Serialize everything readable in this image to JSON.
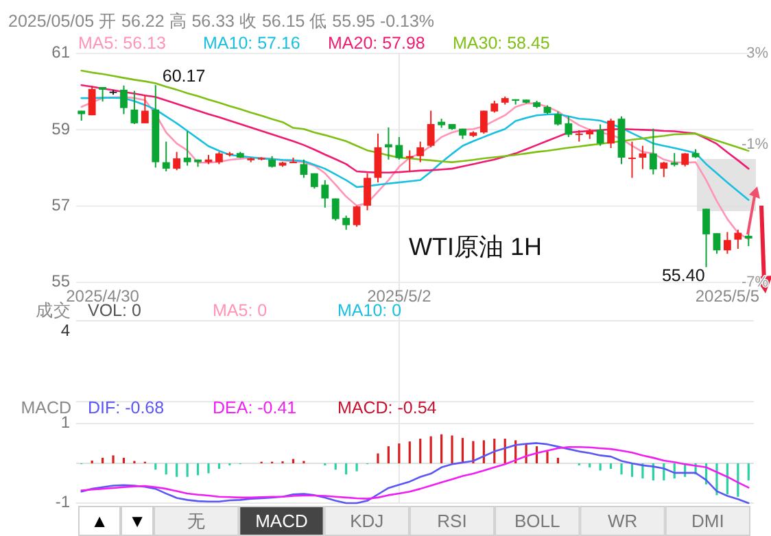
{
  "chart_data": [
    {
      "type": "candlestick",
      "title": "2025/05/05 开 56.22 高 56.33 收 56.15 低 55.95 -0.13%",
      "categories": [
        null,
        null,
        "2025/4/30",
        null,
        null,
        null,
        null,
        null,
        null,
        null,
        null,
        null,
        null,
        null,
        null,
        null,
        null,
        null,
        null,
        null,
        null,
        null,
        null,
        null,
        null,
        null,
        null,
        null,
        null,
        null,
        "2025/5/2",
        null,
        null,
        null,
        null,
        null,
        null,
        null,
        null,
        null,
        null,
        null,
        null,
        null,
        null,
        null,
        null,
        null,
        null,
        null,
        null,
        null,
        null,
        null,
        null,
        null,
        null,
        null,
        null,
        null,
        null,
        "2025/5/5",
        null,
        null
      ],
      "ohlc": [
        [
          59.5,
          59.5,
          59.24,
          59.41
        ],
        [
          59.38,
          60.15,
          59.38,
          60.07
        ],
        [
          60.12,
          60.12,
          59.74,
          60.05
        ],
        [
          60.0,
          60.04,
          59.92,
          59.99
        ],
        [
          60.05,
          60.16,
          59.41,
          59.57
        ],
        [
          59.53,
          60.02,
          59.15,
          59.17
        ],
        [
          59.17,
          59.91,
          59.17,
          59.5
        ],
        [
          59.53,
          60.17,
          58.01,
          58.15
        ],
        [
          58.15,
          58.69,
          57.91,
          57.98
        ],
        [
          57.98,
          58.42,
          57.94,
          58.25
        ],
        [
          58.27,
          58.96,
          58.06,
          58.15
        ],
        [
          58.22,
          58.22,
          58.03,
          58.15
        ],
        [
          58.15,
          58.34,
          58.1,
          58.22
        ],
        [
          58.15,
          58.42,
          58.1,
          58.38
        ],
        [
          58.35,
          58.42,
          58.3,
          58.38
        ],
        [
          58.39,
          58.42,
          58.26,
          58.27
        ],
        [
          58.2,
          58.27,
          58.15,
          58.25
        ],
        [
          58.22,
          58.28,
          58.2,
          58.26
        ],
        [
          58.22,
          58.31,
          58.01,
          58.03
        ],
        [
          58.06,
          58.16,
          58.03,
          58.14
        ],
        [
          58.15,
          58.27,
          58.13,
          58.16
        ],
        [
          58.1,
          58.22,
          57.74,
          57.82
        ],
        [
          57.86,
          57.86,
          57.46,
          57.5
        ],
        [
          57.56,
          57.68,
          56.96,
          57.2
        ],
        [
          57.2,
          57.2,
          56.62,
          56.66
        ],
        [
          56.69,
          56.75,
          56.38,
          56.5
        ],
        [
          56.5,
          57.01,
          56.46,
          56.99
        ],
        [
          57.01,
          57.86,
          56.89,
          57.74
        ],
        [
          57.74,
          58.9,
          57.62,
          58.54
        ],
        [
          58.62,
          59.06,
          58.22,
          58.54
        ],
        [
          58.6,
          58.81,
          58.22,
          58.26
        ],
        [
          58.26,
          58.46,
          57.89,
          58.31
        ],
        [
          58.31,
          58.69,
          58.15,
          58.54
        ],
        [
          58.58,
          59.5,
          58.54,
          59.15
        ],
        [
          59.21,
          59.29,
          59.05,
          59.12
        ],
        [
          59.15,
          59.15,
          59.0,
          59.02
        ],
        [
          59.03,
          59.03,
          58.76,
          58.85
        ],
        [
          58.84,
          58.96,
          58.81,
          58.93
        ],
        [
          58.93,
          59.5,
          58.9,
          59.5
        ],
        [
          59.48,
          59.76,
          59.45,
          59.69
        ],
        [
          59.71,
          59.87,
          59.66,
          59.83
        ],
        [
          59.8,
          59.8,
          59.66,
          59.76
        ],
        [
          59.79,
          59.79,
          59.69,
          59.71
        ],
        [
          59.72,
          59.76,
          59.57,
          59.6
        ],
        [
          59.6,
          59.64,
          59.41,
          59.44
        ],
        [
          59.41,
          59.48,
          59.11,
          59.14
        ],
        [
          59.17,
          59.35,
          58.81,
          58.87
        ],
        [
          58.87,
          58.99,
          58.69,
          58.9
        ],
        [
          58.88,
          59.02,
          58.76,
          58.97
        ],
        [
          59.0,
          59.14,
          58.58,
          58.64
        ],
        [
          58.64,
          59.29,
          58.52,
          59.24
        ],
        [
          59.29,
          59.35,
          58.1,
          58.27
        ],
        [
          58.26,
          58.69,
          57.74,
          58.27
        ],
        [
          58.27,
          58.58,
          57.97,
          58.38
        ],
        [
          58.38,
          59.03,
          57.83,
          57.96
        ],
        [
          57.98,
          58.16,
          57.76,
          58.14
        ],
        [
          58.14,
          58.39,
          58.04,
          58.08
        ],
        [
          58.08,
          58.39,
          58.04,
          58.38
        ],
        [
          58.39,
          58.49,
          58.26,
          58.28
        ],
        [
          56.93,
          56.93,
          55.4,
          56.26
        ],
        [
          56.29,
          56.29,
          55.75,
          55.84
        ],
        [
          55.84,
          56.32,
          55.75,
          56.11
        ],
        [
          56.12,
          56.38,
          55.88,
          56.3
        ],
        [
          56.22,
          56.33,
          55.95,
          56.15
        ]
      ],
      "colors": [
        "#0aa532",
        "#f0201e",
        "#0aa532",
        "#222222",
        "#0aa532",
        "#0aa532",
        "#f0201e",
        "#0aa532",
        "#0aa532",
        "#f0201e",
        "#0aa532",
        "#0aa532",
        "#f0201e",
        "#f0201e",
        "#f0201e",
        "#0aa532",
        "#f0201e",
        "#f0201e",
        "#0aa532",
        "#f0201e",
        "#f0201e",
        "#0aa532",
        "#0aa532",
        "#0aa532",
        "#0aa532",
        "#0aa532",
        "#f0201e",
        "#f0201e",
        "#f0201e",
        "#0aa532",
        "#0aa532",
        "#f0201e",
        "#f0201e",
        "#f0201e",
        "#0aa532",
        "#0aa532",
        "#0aa532",
        "#f0201e",
        "#f0201e",
        "#f0201e",
        "#f0201e",
        "#0aa532",
        "#0aa532",
        "#0aa532",
        "#0aa532",
        "#0aa532",
        "#0aa532",
        "#f0201e",
        "#f0201e",
        "#0aa532",
        "#f0201e",
        "#0aa532",
        "#f0201e",
        "#f0201e",
        "#0aa532",
        "#f0201e",
        "#0aa532",
        "#f0201e",
        "#0aa532",
        "#0aa532",
        "#0aa532",
        "#f0201e",
        "#f0201e",
        "#0aa532"
      ],
      "series": [
        {
          "name": "MA5: 56.13",
          "type": "line",
          "color": "#ff94b4",
          "values": [
            59.6,
            59.72,
            59.83,
            59.85,
            59.86,
            59.83,
            59.78,
            59.41,
            58.93,
            58.64,
            58.46,
            58.14,
            58.14,
            58.16,
            58.21,
            58.24,
            58.27,
            58.26,
            58.24,
            58.2,
            58.17,
            58.15,
            58.06,
            57.86,
            57.56,
            57.25,
            57.01,
            57.08,
            57.38,
            57.68,
            58.03,
            58.27,
            58.38,
            58.58,
            58.81,
            58.93,
            59.0,
            59.02,
            59.09,
            59.24,
            59.38,
            59.6,
            59.69,
            59.69,
            59.6,
            59.48,
            59.29,
            59.12,
            59.0,
            58.93,
            58.87,
            58.76,
            58.58,
            58.42,
            58.38,
            58.22,
            58.15,
            58.14,
            58.15,
            57.68,
            57.13,
            56.66,
            56.3,
            56.13
          ]
        },
        {
          "name": "MA10: 57.16",
          "type": "line",
          "color": "#17bfe0",
          "values": [
            59.83,
            59.83,
            59.84,
            59.84,
            59.83,
            59.75,
            59.65,
            59.53,
            59.35,
            59.17,
            58.97,
            58.77,
            58.57,
            58.45,
            58.34,
            58.31,
            58.28,
            58.25,
            58.23,
            58.21,
            58.2,
            58.18,
            58.08,
            57.98,
            57.83,
            57.68,
            57.5,
            57.52,
            57.56,
            57.59,
            57.62,
            57.65,
            57.68,
            57.9,
            58.15,
            58.37,
            58.58,
            58.7,
            58.81,
            58.92,
            59.02,
            59.23,
            59.31,
            59.38,
            59.4,
            59.41,
            59.35,
            59.29,
            59.27,
            59.24,
            59.15,
            59.05,
            58.91,
            58.78,
            58.64,
            58.58,
            58.52,
            58.46,
            58.39,
            58.1,
            57.86,
            57.62,
            57.39,
            57.16
          ]
        },
        {
          "name": "MA20: 57.98",
          "type": "line",
          "color": "#f01a70",
          "values": [
            60.17,
            60.13,
            60.08,
            60.04,
            59.99,
            59.95,
            59.9,
            59.86,
            59.77,
            59.68,
            59.59,
            59.5,
            59.41,
            59.33,
            59.24,
            59.15,
            59.06,
            58.97,
            58.88,
            58.79,
            58.7,
            58.6,
            58.48,
            58.35,
            58.23,
            58.1,
            57.91,
            57.89,
            57.88,
            57.88,
            57.89,
            57.91,
            57.93,
            57.94,
            57.96,
            57.98,
            58.04,
            58.1,
            58.16,
            58.22,
            58.3,
            58.38,
            58.49,
            58.6,
            58.71,
            58.82,
            58.93,
            58.95,
            58.97,
            58.99,
            59.01,
            59.02,
            59.01,
            59.0,
            58.99,
            58.97,
            58.96,
            58.93,
            58.9,
            58.77,
            58.63,
            58.41,
            58.2,
            57.98
          ]
        },
        {
          "name": "MA30: 58.45",
          "type": "line",
          "color": "#7dbf12",
          "values": [
            60.55,
            60.5,
            60.46,
            60.41,
            60.36,
            60.31,
            60.27,
            60.22,
            60.13,
            60.05,
            59.96,
            59.88,
            59.79,
            59.71,
            59.62,
            59.54,
            59.45,
            59.37,
            59.28,
            59.2,
            59.05,
            59.02,
            58.93,
            58.86,
            58.78,
            58.7,
            58.58,
            58.46,
            58.4,
            58.33,
            58.27,
            58.25,
            58.22,
            58.2,
            58.17,
            58.15,
            58.18,
            58.21,
            58.25,
            58.28,
            58.31,
            58.34,
            58.38,
            58.42,
            58.45,
            58.49,
            58.53,
            58.56,
            58.6,
            58.63,
            58.67,
            58.7,
            58.74,
            58.77,
            58.81,
            58.84,
            58.88,
            58.89,
            58.9,
            58.81,
            58.72,
            58.63,
            58.54,
            58.45
          ]
        }
      ],
      "ylim": [
        55,
        61
      ],
      "yticks": [
        61,
        59,
        57,
        55
      ],
      "y2lim": [
        -7,
        3
      ],
      "y2ticks": [
        {
          "value": 3,
          "label": "3%"
        },
        {
          "value": -1,
          "label": "-1%"
        },
        {
          "value": -7,
          "label": "-7%"
        }
      ],
      "grid": true,
      "legend": "top",
      "annotations": [
        {
          "text": "60.17",
          "y": 60.17
        },
        "55.40",
        "WTI原油 1H"
      ]
    },
    {
      "type": "other",
      "title": "成交",
      "annotations": [
        "VOL: 0",
        "MA5: 0",
        "MA10: 0",
        "4"
      ],
      "colors": [
        "#555555",
        "#ff94b4",
        "#17bfe0",
        "#333333"
      ]
    },
    {
      "type": "bar",
      "title": "MACD",
      "categories": [
        null,
        null,
        null,
        null,
        null,
        null,
        null,
        null,
        null,
        null,
        null,
        null,
        null,
        null,
        null,
        null,
        null,
        null,
        null,
        null,
        null,
        null,
        null,
        null,
        null,
        null,
        null,
        null,
        null,
        null,
        null,
        null,
        null,
        null,
        null,
        null,
        null,
        null,
        null,
        null,
        null,
        null,
        null,
        null,
        null,
        null,
        null,
        null,
        null,
        null,
        null,
        null,
        null,
        null,
        null,
        null,
        null,
        null,
        null,
        null,
        null,
        null,
        null,
        null
      ],
      "series": [
        {
          "name": "DIF: -0.68",
          "type": "line",
          "color": "#5a55f5",
          "values": [
            -0.71,
            -0.64,
            -0.6,
            -0.56,
            -0.55,
            -0.56,
            -0.59,
            -0.64,
            -0.76,
            -0.87,
            -0.92,
            -0.95,
            -0.96,
            -0.96,
            -0.93,
            -0.92,
            -0.89,
            -0.88,
            -0.86,
            -0.84,
            -0.78,
            -0.77,
            -0.8,
            -0.86,
            -0.94,
            -1.0,
            -1.0,
            -0.94,
            -0.78,
            -0.62,
            -0.54,
            -0.46,
            -0.34,
            -0.26,
            -0.1,
            -0.02,
            0.02,
            0.06,
            0.18,
            0.3,
            0.38,
            0.46,
            0.49,
            0.51,
            0.48,
            0.42,
            0.36,
            0.3,
            0.26,
            0.2,
            0.17,
            0.06,
            0,
            -0.05,
            -0.08,
            -0.13,
            -0.24,
            -0.24,
            -0.24,
            -0.42,
            -0.7,
            -0.82,
            -0.9,
            -1.0
          ]
        },
        {
          "name": "DEA: -0.41",
          "type": "line",
          "color": "#f01ef0",
          "values": [
            -0.68,
            -0.66,
            -0.64,
            -0.62,
            -0.6,
            -0.58,
            -0.57,
            -0.6,
            -0.64,
            -0.7,
            -0.76,
            -0.79,
            -0.81,
            -0.84,
            -0.85,
            -0.86,
            -0.86,
            -0.85,
            -0.84,
            -0.84,
            -0.82,
            -0.81,
            -0.81,
            -0.82,
            -0.84,
            -0.86,
            -0.88,
            -0.89,
            -0.86,
            -0.8,
            -0.76,
            -0.71,
            -0.64,
            -0.56,
            -0.48,
            -0.4,
            -0.32,
            -0.26,
            -0.18,
            -0.1,
            -0.02,
            0.08,
            0.18,
            0.26,
            0.32,
            0.38,
            0.41,
            0.41,
            0.4,
            0.38,
            0.36,
            0.32,
            0.27,
            0.2,
            0.14,
            0.07,
            0.03,
            -0.02,
            -0.06,
            -0.1,
            -0.22,
            -0.34,
            -0.48,
            -0.61
          ]
        },
        {
          "name": "MACD: -0.54",
          "type": "bar",
          "color": "#c8102e",
          "values": [
            -0.02,
            0.07,
            0.14,
            0.2,
            0.14,
            0.06,
            0.04,
            -0.16,
            -0.28,
            -0.34,
            -0.34,
            -0.3,
            -0.25,
            -0.14,
            -0.05,
            -0.02,
            0,
            0.04,
            0.04,
            0.05,
            0.11,
            0.06,
            0,
            -0.05,
            -0.16,
            -0.28,
            -0.2,
            -0.02,
            0.25,
            0.43,
            0.5,
            0.55,
            0.62,
            0.68,
            0.73,
            0.7,
            0.64,
            0.56,
            0.58,
            0.62,
            0.62,
            0.58,
            0.5,
            0.43,
            0.3,
            0.14,
            0,
            -0.05,
            -0.1,
            -0.18,
            -0.14,
            -0.28,
            -0.34,
            -0.38,
            -0.43,
            -0.43,
            -0.38,
            -0.34,
            -0.28,
            -0.53,
            -0.8,
            -0.78,
            -0.84,
            -0.43
          ],
          "colors": [
            "#2bd1a4",
            "#d81e1e",
            "#d81e1e",
            "#d81e1e",
            "#d81e1e",
            "#d81e1e",
            "#d81e1e",
            "#2bd1a4",
            "#2bd1a4",
            "#2bd1a4",
            "#2bd1a4",
            "#2bd1a4",
            "#2bd1a4",
            "#2bd1a4",
            "#2bd1a4",
            "#2bd1a4",
            "#d81e1e",
            "#d81e1e",
            "#d81e1e",
            "#d81e1e",
            "#d81e1e",
            "#d81e1e",
            "#d81e1e",
            "#2bd1a4",
            "#2bd1a4",
            "#2bd1a4",
            "#2bd1a4",
            "#2bd1a4",
            "#d81e1e",
            "#d81e1e",
            "#d81e1e",
            "#d81e1e",
            "#d81e1e",
            "#d81e1e",
            "#d81e1e",
            "#d81e1e",
            "#d81e1e",
            "#d81e1e",
            "#d81e1e",
            "#d81e1e",
            "#d81e1e",
            "#d81e1e",
            "#d81e1e",
            "#d81e1e",
            "#d81e1e",
            "#d81e1e",
            "#d81e1e",
            "#2bd1a4",
            "#2bd1a4",
            "#2bd1a4",
            "#2bd1a4",
            "#2bd1a4",
            "#2bd1a4",
            "#2bd1a4",
            "#2bd1a4",
            "#2bd1a4",
            "#2bd1a4",
            "#2bd1a4",
            "#2bd1a4",
            "#2bd1a4",
            "#2bd1a4",
            "#2bd1a4",
            "#2bd1a4",
            "#2bd1a4"
          ]
        }
      ],
      "ylim": [
        -1,
        1
      ],
      "yticks": [
        1,
        -1
      ],
      "legend": "top"
    },
    {
      "type": "other",
      "annotations": [
        "▲",
        "▼",
        "无",
        "MACD",
        "KDJ",
        "RSI",
        "BOLL",
        "WR",
        "DMI"
      ]
    }
  ]
}
